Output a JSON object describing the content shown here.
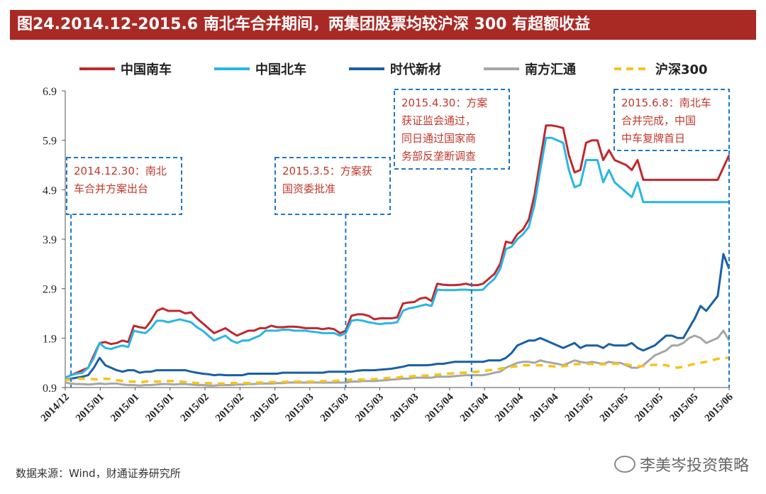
{
  "title": "图24.2014.12-2015.6 南北车合并期间，两集团股票均较沪深 300 有超额收益",
  "source": "数据来源：Wind，财通证券研究所",
  "watermark": "李美岑投资策略",
  "colors": {
    "title_bg": "#a92a25",
    "annotation_border": "#1f78c8",
    "annotation_text": "#c0392b"
  },
  "chart_data": {
    "type": "line",
    "title": "",
    "xlabel": "",
    "ylabel": "",
    "ylim": [
      0.9,
      6.9
    ],
    "yticks": [
      0.9,
      1.9,
      2.9,
      3.9,
      4.9,
      5.9,
      6.9
    ],
    "ytick_labels": [
      "0.9",
      "1.9",
      "2.9",
      "3.9",
      "4.9",
      "5.9",
      "6.9"
    ],
    "x_tick_labels": [
      "2014/12",
      "2015/01",
      "2015/01",
      "2015/01",
      "2015/02",
      "2015/02",
      "2015/02",
      "2015/03",
      "2015/03",
      "2015/03",
      "2015/03",
      "2015/04",
      "2015/04",
      "2015/04",
      "2015/04",
      "2015/05",
      "2015/05",
      "2015/05",
      "2015/05",
      "2015/06"
    ],
    "n_points": 117,
    "legend_position": "top",
    "series": [
      {
        "name": "中国南车",
        "color": "#c0282e",
        "dash": false,
        "values": [
          1.1,
          1.15,
          1.2,
          1.25,
          1.3,
          1.55,
          1.8,
          1.82,
          1.78,
          1.8,
          1.85,
          1.82,
          2.15,
          2.12,
          2.1,
          2.25,
          2.45,
          2.5,
          2.45,
          2.45,
          2.45,
          2.4,
          2.42,
          2.3,
          2.2,
          2.1,
          2.0,
          2.05,
          2.1,
          2.02,
          1.95,
          2.0,
          2.05,
          2.05,
          2.1,
          2.1,
          2.15,
          2.12,
          2.12,
          2.13,
          2.13,
          2.12,
          2.1,
          2.1,
          2.1,
          2.08,
          2.1,
          2.08,
          2.0,
          2.05,
          2.35,
          2.38,
          2.38,
          2.35,
          2.28,
          2.3,
          2.3,
          2.3,
          2.32,
          2.6,
          2.62,
          2.63,
          2.7,
          2.72,
          2.65,
          3.0,
          2.98,
          2.97,
          2.97,
          2.98,
          3.0,
          2.97,
          2.97,
          3.0,
          3.1,
          3.2,
          3.4,
          3.85,
          3.82,
          4.0,
          4.1,
          4.3,
          4.8,
          5.5,
          6.2,
          6.2,
          6.18,
          6.15,
          5.6,
          5.25,
          5.3,
          5.85,
          5.9,
          5.9,
          5.5,
          5.7,
          5.5,
          5.45,
          5.4,
          5.3,
          5.5,
          5.1,
          5.1,
          5.1,
          5.1,
          5.1,
          5.1,
          5.1,
          5.1,
          5.1,
          5.1,
          5.1,
          5.1,
          5.1,
          5.1,
          5.35,
          5.6
        ]
      },
      {
        "name": "中国北车",
        "color": "#29b6e6",
        "dash": false,
        "values": [
          1.1,
          1.15,
          1.18,
          1.2,
          1.3,
          1.5,
          1.8,
          1.7,
          1.68,
          1.72,
          1.75,
          1.72,
          2.05,
          2.02,
          2.0,
          2.1,
          2.25,
          2.25,
          2.22,
          2.25,
          2.28,
          2.25,
          2.22,
          2.12,
          2.05,
          1.95,
          1.85,
          1.9,
          1.95,
          1.85,
          1.8,
          1.85,
          1.85,
          1.9,
          1.95,
          2.05,
          2.05,
          2.05,
          2.07,
          2.07,
          2.05,
          2.05,
          2.05,
          2.03,
          2.02,
          2.0,
          2.0,
          2.0,
          1.95,
          2.0,
          2.25,
          2.27,
          2.25,
          2.22,
          2.2,
          2.18,
          2.2,
          2.2,
          2.22,
          2.45,
          2.5,
          2.52,
          2.55,
          2.58,
          2.55,
          2.88,
          2.87,
          2.87,
          2.87,
          2.88,
          2.88,
          2.87,
          2.87,
          2.88,
          3.0,
          3.1,
          3.3,
          3.7,
          3.75,
          3.9,
          4.0,
          4.15,
          4.6,
          5.3,
          5.95,
          5.95,
          5.9,
          5.85,
          5.3,
          4.95,
          5.0,
          5.5,
          5.5,
          5.5,
          5.05,
          5.3,
          5.05,
          4.95,
          4.85,
          4.75,
          5.05,
          4.65,
          4.65,
          4.65,
          4.65,
          4.65,
          4.65,
          4.65,
          4.65,
          4.65,
          4.65,
          4.65,
          4.65,
          4.65,
          4.65,
          4.65,
          4.65
        ]
      },
      {
        "name": "时代新材",
        "color": "#1a5fa4",
        "dash": false,
        "values": [
          1.05,
          1.08,
          1.1,
          1.12,
          1.15,
          1.3,
          1.5,
          1.35,
          1.3,
          1.25,
          1.22,
          1.25,
          1.25,
          1.2,
          1.22,
          1.22,
          1.25,
          1.25,
          1.25,
          1.25,
          1.25,
          1.25,
          1.22,
          1.2,
          1.18,
          1.17,
          1.15,
          1.16,
          1.15,
          1.15,
          1.15,
          1.15,
          1.18,
          1.18,
          1.18,
          1.18,
          1.18,
          1.18,
          1.2,
          1.2,
          1.2,
          1.2,
          1.2,
          1.2,
          1.2,
          1.2,
          1.22,
          1.22,
          1.22,
          1.22,
          1.22,
          1.24,
          1.25,
          1.25,
          1.25,
          1.26,
          1.27,
          1.28,
          1.3,
          1.32,
          1.35,
          1.35,
          1.35,
          1.35,
          1.36,
          1.38,
          1.38,
          1.4,
          1.42,
          1.42,
          1.42,
          1.42,
          1.42,
          1.42,
          1.45,
          1.45,
          1.45,
          1.5,
          1.6,
          1.75,
          1.8,
          1.85,
          1.85,
          1.9,
          1.85,
          1.8,
          1.75,
          1.7,
          1.75,
          1.8,
          1.7,
          1.75,
          1.75,
          1.75,
          1.7,
          1.78,
          1.75,
          1.75,
          1.75,
          1.8,
          1.7,
          1.65,
          1.7,
          1.75,
          1.85,
          1.95,
          1.95,
          1.9,
          1.9,
          2.1,
          2.3,
          2.55,
          2.45,
          2.6,
          2.75,
          3.6,
          3.3
        ]
      },
      {
        "name": "南方汇通",
        "color": "#a6a6a6",
        "dash": false,
        "values": [
          1.0,
          0.98,
          0.97,
          0.97,
          0.96,
          0.97,
          0.98,
          0.97,
          0.98,
          0.98,
          0.96,
          0.95,
          0.95,
          0.94,
          0.95,
          0.95,
          0.96,
          0.97,
          0.97,
          0.96,
          0.97,
          0.97,
          0.96,
          0.95,
          0.95,
          0.94,
          0.94,
          0.95,
          0.95,
          0.95,
          0.96,
          0.96,
          0.97,
          0.97,
          0.98,
          0.98,
          0.98,
          0.99,
          0.99,
          1.0,
          1.0,
          1.0,
          1.0,
          1.0,
          1.0,
          1.0,
          1.0,
          1.0,
          1.0,
          1.0,
          1.02,
          1.02,
          1.03,
          1.03,
          1.03,
          1.04,
          1.05,
          1.06,
          1.07,
          1.08,
          1.08,
          1.1,
          1.1,
          1.1,
          1.1,
          1.12,
          1.12,
          1.12,
          1.13,
          1.14,
          1.15,
          1.15,
          1.15,
          1.15,
          1.17,
          1.2,
          1.22,
          1.3,
          1.35,
          1.4,
          1.42,
          1.42,
          1.4,
          1.45,
          1.42,
          1.4,
          1.38,
          1.35,
          1.4,
          1.45,
          1.42,
          1.4,
          1.42,
          1.4,
          1.38,
          1.42,
          1.4,
          1.4,
          1.35,
          1.3,
          1.3,
          1.35,
          1.45,
          1.55,
          1.6,
          1.65,
          1.75,
          1.75,
          1.8,
          1.9,
          1.95,
          1.9,
          1.8,
          1.85,
          1.9,
          2.05,
          1.85
        ]
      },
      {
        "name": "沪深300",
        "color": "#f5c518",
        "dash": true,
        "values": [
          1.05,
          1.06,
          1.08,
          1.08,
          1.08,
          1.07,
          1.06,
          1.08,
          1.07,
          1.05,
          1.03,
          1.02,
          1.02,
          1.0,
          1.02,
          1.03,
          1.02,
          1.02,
          1.03,
          1.03,
          1.02,
          1.01,
          1.0,
          0.99,
          0.99,
          0.99,
          0.98,
          0.98,
          0.98,
          0.99,
          0.99,
          0.99,
          0.99,
          1.0,
          1.0,
          1.0,
          1.01,
          1.01,
          1.01,
          1.02,
          1.02,
          1.02,
          1.02,
          1.02,
          1.02,
          1.03,
          1.03,
          1.03,
          1.04,
          1.05,
          1.06,
          1.06,
          1.06,
          1.06,
          1.07,
          1.08,
          1.09,
          1.1,
          1.1,
          1.12,
          1.12,
          1.13,
          1.14,
          1.14,
          1.15,
          1.16,
          1.17,
          1.18,
          1.19,
          1.2,
          1.2,
          1.21,
          1.22,
          1.23,
          1.25,
          1.26,
          1.28,
          1.3,
          1.32,
          1.33,
          1.35,
          1.35,
          1.35,
          1.35,
          1.35,
          1.33,
          1.32,
          1.33,
          1.35,
          1.37,
          1.38,
          1.38,
          1.38,
          1.37,
          1.37,
          1.38,
          1.38,
          1.38,
          1.37,
          1.35,
          1.33,
          1.33,
          1.35,
          1.36,
          1.36,
          1.35,
          1.32,
          1.3,
          1.32,
          1.35,
          1.38,
          1.4,
          1.42,
          1.45,
          1.48,
          1.5,
          1.5
        ]
      }
    ],
    "annotations": [
      {
        "lines": [
          "2014.12.30：南北",
          "车合并方案出台"
        ],
        "x_index": 1
      },
      {
        "lines": [
          "2015.3.5：方案获",
          "国资委批准"
        ],
        "x_index": 49
      },
      {
        "lines": [
          "2015.4.30：方案",
          "获证监会通过，",
          "同日通过国家商",
          "务部反垄断调查"
        ],
        "x_index": 71
      },
      {
        "lines": [
          "2015.6.8：南北车",
          "合并完成，中国",
          "中车复牌首日"
        ],
        "x_index": 116
      }
    ]
  }
}
